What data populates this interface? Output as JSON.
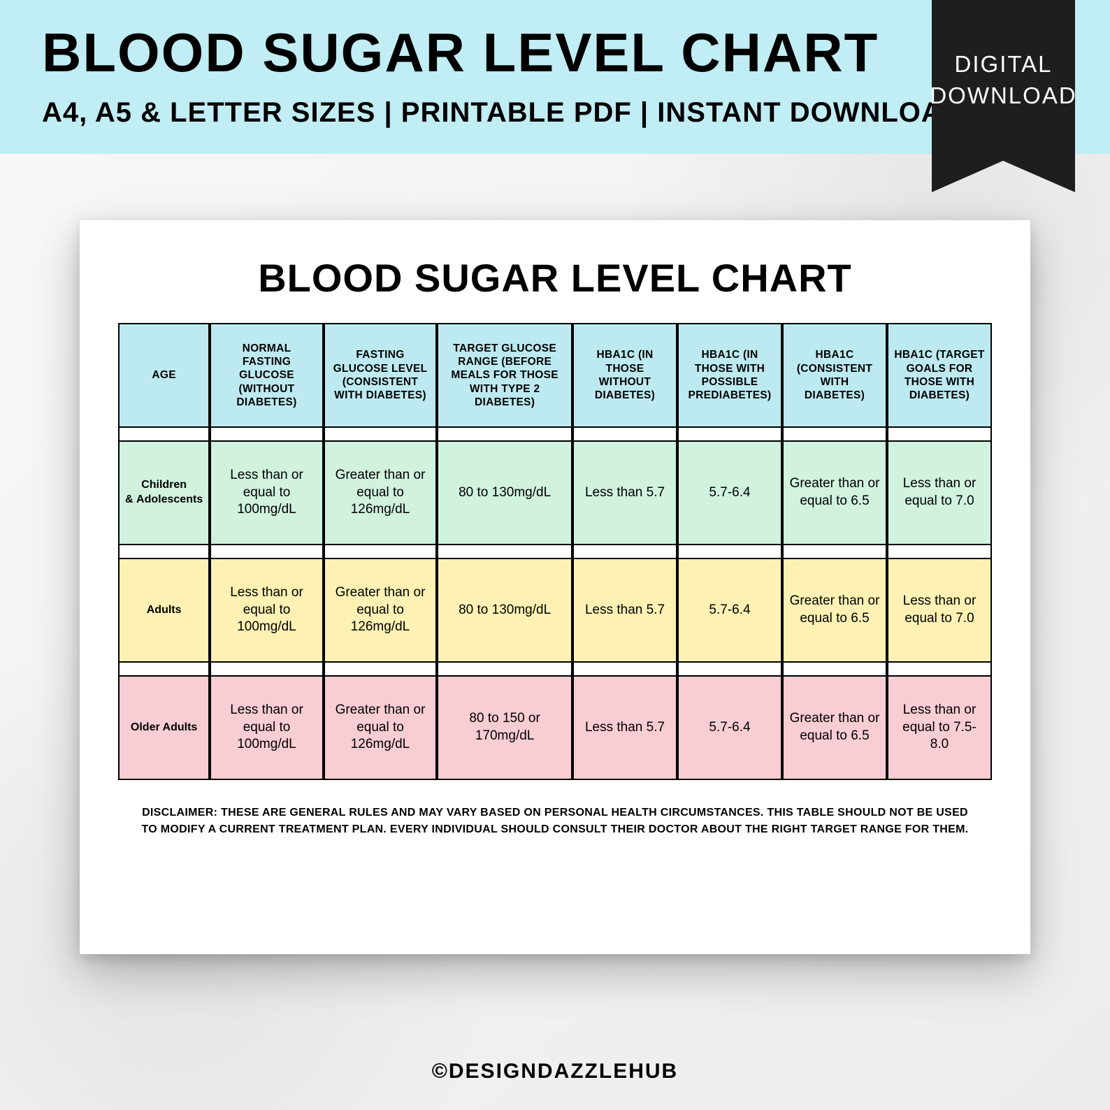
{
  "banner": {
    "title": "BLOOD SUGAR LEVEL CHART",
    "subtitle": "A4, A5 & LETTER SIZES | PRINTABLE PDF | INSTANT DOWNLOAD",
    "background_color": "#c1edf4"
  },
  "ribbon": {
    "line1": "DIGITAL",
    "line2": "DOWNLOAD",
    "color": "#1e1e1e",
    "text_color": "#ffffff"
  },
  "page": {
    "title": "BLOOD SUGAR LEVEL CHART",
    "disclaimer": "DISCLAIMER: THESE ARE GENERAL RULES AND MAY VARY BASED ON PERSONAL HEALTH CIRCUMSTANCES. THIS TABLE SHOULD NOT BE USED TO MODIFY A CURRENT TREATMENT PLAN. EVERY INDIVIDUAL SHOULD CONSULT THEIR DOCTOR ABOUT THE RIGHT TARGET RANGE FOR THEM."
  },
  "table": {
    "header_bg": "#bdeaf1",
    "border_color": "#000000",
    "col_widths_pct": [
      10.5,
      13,
      13,
      15.5,
      12,
      12,
      12,
      12
    ],
    "columns": [
      "AGE",
      "NORMAL  FASTING GLUCOSE (WITHOUT DIABETES)",
      "FASTING GLUCOSE LEVEL (CONSISTENT WITH DIABETES)",
      "TARGET GLUCOSE RANGE (BEFORE MEALS FOR THOSE WITH TYPE 2 DIABETES)",
      "HBA1C (IN THOSE WITHOUT DIABETES)",
      "HBA1C (IN THOSE WITH POSSIBLE PREDIABETES)",
      "HBA1C (CONSISTENT WITH DIABETES)",
      "HBA1C (TARGET GOALS FOR THOSE WITH DIABETES)"
    ],
    "rows": [
      {
        "label": "Children & Adolescents",
        "bg": "#d0f2df",
        "cells": [
          "Less than or equal to 100mg/dL",
          "Greater than or equal to 126mg/dL",
          "80 to 130mg/dL",
          "Less than 5.7",
          "5.7-6.4",
          "Greater than or equal to 6.5",
          "Less than or equal to 7.0"
        ]
      },
      {
        "label": "Adults",
        "bg": "#fdf2b4",
        "cells": [
          "Less than or equal to 100mg/dL",
          "Greater than or equal to 126mg/dL",
          "80 to 130mg/dL",
          "Less than 5.7",
          "5.7-6.4",
          "Greater than or equal to 6.5",
          "Less than or equal to 7.0"
        ]
      },
      {
        "label": "Older Adults",
        "bg": "#f8cdd4",
        "cells": [
          "Less than or equal to 100mg/dL",
          "Greater than or equal to 126mg/dL",
          "80 to 150 or 170mg/dL",
          "Less than 5.7",
          "5.7-6.4",
          "Greater than or equal to 6.5",
          "Less than or equal to 7.5-8.0"
        ]
      }
    ]
  },
  "footer": {
    "copyright": "©DESIGNDAZZLEHUB"
  }
}
